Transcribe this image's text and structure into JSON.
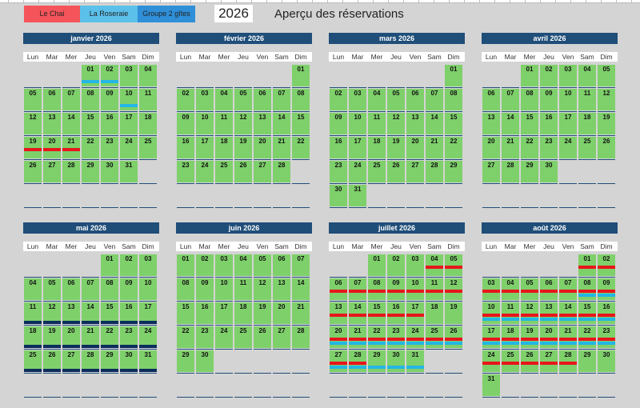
{
  "legend": [
    {
      "label": "Le Chai",
      "color": "#f4545a"
    },
    {
      "label": "La Roseraie",
      "color": "#5bc0ea"
    },
    {
      "label": "Groupe 2 gîtes",
      "color": "#2f8fd8"
    }
  ],
  "year": "2026",
  "title": "Aperçu des réservations",
  "weekdays": [
    "Lun",
    "Mar",
    "Mer",
    "Jeu",
    "Ven",
    "Sam",
    "Dim"
  ],
  "booking_colors": {
    "chai": "#e8161c",
    "roseraie": "#24b6e4",
    "groupe": "#0b2d5c"
  },
  "months": [
    {
      "name": "janvier 2026",
      "offset": 3,
      "days": 31,
      "bookings": {
        "chai": [
          19,
          20,
          21
        ],
        "roseraie": [
          1,
          2,
          10
        ]
      }
    },
    {
      "name": "février 2026",
      "offset": 6,
      "days": 28,
      "bookings": {}
    },
    {
      "name": "mars 2026",
      "offset": 6,
      "days": 31,
      "bookings": {}
    },
    {
      "name": "avril 2026",
      "offset": 2,
      "days": 30,
      "bookings": {}
    },
    {
      "name": "mai 2026",
      "offset": 4,
      "days": 31,
      "bookings": {
        "groupe": [
          11,
          12,
          13,
          14,
          15,
          16,
          17,
          18,
          19,
          20,
          21,
          22,
          23,
          24,
          25,
          26,
          27,
          28,
          29,
          30,
          31
        ]
      }
    },
    {
      "name": "juin 2026",
      "offset": 0,
      "days": 30,
      "bookings": {}
    },
    {
      "name": "juillet 2026",
      "offset": 2,
      "days": 31,
      "bookings": {
        "chai": [
          4,
          5,
          6,
          7,
          8,
          9,
          10,
          11,
          12,
          13,
          14,
          15,
          16,
          17,
          20,
          21,
          22,
          23,
          24,
          25,
          26,
          27,
          28
        ],
        "roseraie": [
          20,
          21,
          22,
          23,
          24,
          25,
          26,
          27,
          28,
          29,
          30,
          31
        ]
      }
    },
    {
      "name": "août 2026",
      "offset": 5,
      "days": 31,
      "bookings": {
        "chai": [
          1,
          2,
          3,
          4,
          5,
          6,
          7,
          8,
          9,
          10,
          11,
          12,
          13,
          14,
          15,
          16,
          17,
          18,
          19,
          20,
          21,
          22,
          23,
          24,
          25,
          26,
          27,
          28
        ],
        "roseraie": [
          8,
          9,
          10,
          11,
          12,
          13,
          14,
          15,
          16,
          17,
          18,
          19,
          20,
          21,
          22,
          23
        ]
      }
    }
  ]
}
